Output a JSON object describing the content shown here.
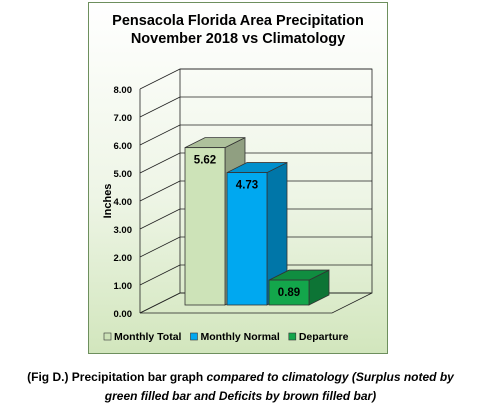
{
  "chart_data": {
    "type": "bar",
    "title": [
      "Pensacola Florida Area Precipitation",
      "November 2018 vs Climatology"
    ],
    "ylabel": "Inches",
    "ylim": [
      0,
      8
    ],
    "yticks": [
      "0.00",
      "1.00",
      "2.00",
      "3.00",
      "4.00",
      "5.00",
      "6.00",
      "7.00",
      "8.00"
    ],
    "series": [
      {
        "name": "Monthly Total",
        "value": 5.62,
        "label": "5.62",
        "color": "#cde3b8"
      },
      {
        "name": "Monthly Normal",
        "value": 4.73,
        "label": "4.73",
        "color": "#00a8f0"
      },
      {
        "name": "Departure",
        "value": 0.89,
        "label": "0.89",
        "color": "#13a64b"
      }
    ],
    "legend": "bottom",
    "grid": true,
    "three_d": true
  },
  "caption": {
    "line1_normal": "(Fig D.) Precipitation bar graph ",
    "line1_italic": "compared to climatology (Surplus noted by",
    "line2_italic": "green filled bar and Deficits by brown filled bar)"
  }
}
